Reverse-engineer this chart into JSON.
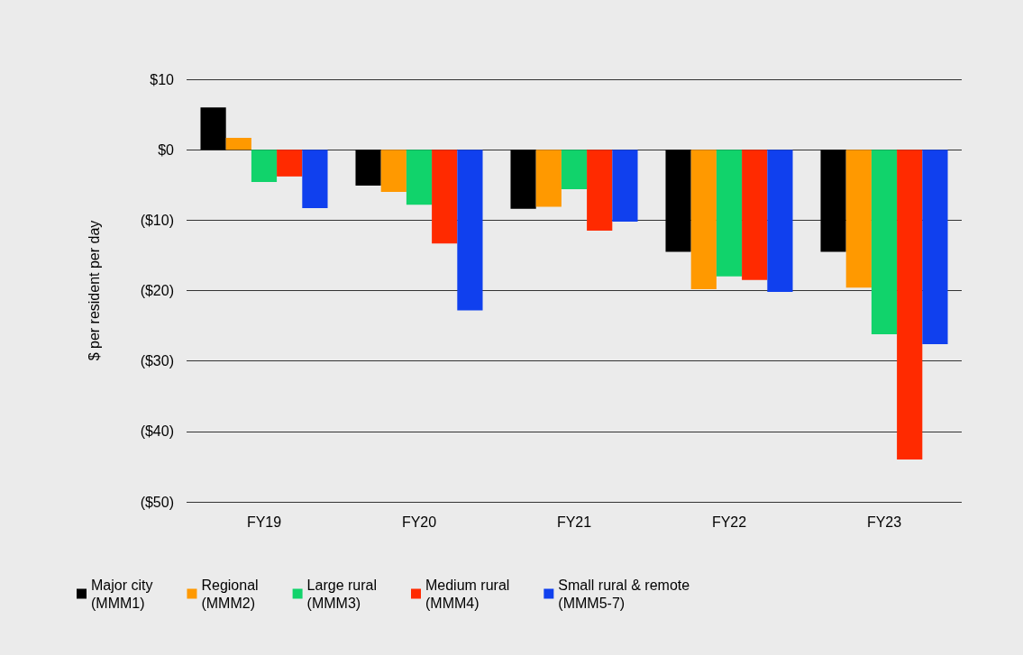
{
  "chart_data": {
    "type": "bar",
    "ylabel": "$ per resident per day",
    "categories": [
      "FY19",
      "FY20",
      "FY21",
      "FY22",
      "FY23"
    ],
    "series": [
      {
        "name": "Major city\n(MMM1)",
        "color": "#000000",
        "values": [
          6.0,
          -5.1,
          -8.4,
          -14.5,
          -14.5
        ]
      },
      {
        "name": "Regional\n(MMM2)",
        "color": "#ff9900",
        "values": [
          1.7,
          -6.0,
          -8.1,
          -19.8,
          -19.6
        ]
      },
      {
        "name": "Large rural\n(MMM3)",
        "color": "#11d36b",
        "values": [
          -4.6,
          -7.8,
          -5.6,
          -18.0,
          -26.2
        ]
      },
      {
        "name": "Medium rural\n(MMM4)",
        "color": "#ff2a00",
        "values": [
          -3.8,
          -13.3,
          -11.5,
          -18.5,
          -44.0
        ]
      },
      {
        "name": "Small rural & remote\n(MMM5-7)",
        "color": "#1040ee",
        "values": [
          -8.3,
          -22.8,
          -10.2,
          -20.2,
          -27.6
        ]
      }
    ],
    "ylim": [
      -50,
      10
    ],
    "yticks": [
      {
        "value": -50,
        "label": "($50)"
      },
      {
        "value": -40,
        "label": "($40)"
      },
      {
        "value": -30,
        "label": "($30)"
      },
      {
        "value": -20,
        "label": "($20)"
      },
      {
        "value": -10,
        "label": "($10)"
      },
      {
        "value": 0,
        "label": "$0"
      },
      {
        "value": 10,
        "label": "$10"
      }
    ],
    "grid": "y",
    "legend": "bottom left"
  }
}
